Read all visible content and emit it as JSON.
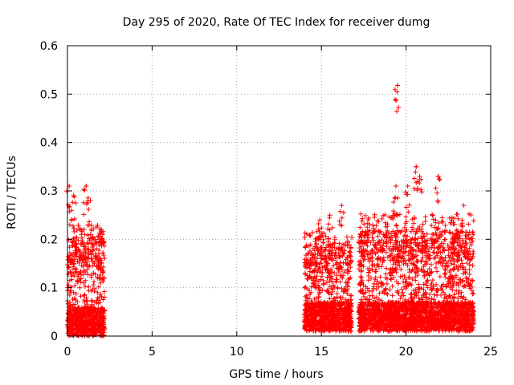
{
  "chart_data": {
    "type": "scatter",
    "title": "Day 295 of 2020, Rate Of TEC Index for receiver dumg",
    "xlabel": "GPS time / hours",
    "ylabel": "ROTI / TECUs",
    "xlim": [
      0,
      25
    ],
    "ylim": [
      0,
      0.6
    ],
    "x_ticks": [
      0,
      5,
      10,
      15,
      20,
      25
    ],
    "y_ticks": [
      0,
      0.1,
      0.2,
      0.3,
      0.4,
      0.5,
      0.6
    ],
    "grid": true,
    "marker": "+",
    "series_color": "#ff0000",
    "series": [
      {
        "segments": [
          {
            "start": 0.0,
            "end": 2.2,
            "base_min": 0.0,
            "base_max": 0.2,
            "peaks": [
              [
                0.1,
                0.31
              ],
              [
                1.1,
                0.31
              ],
              [
                1.35,
                0.28
              ],
              [
                0.35,
                0.29
              ],
              [
                2.0,
                0.22
              ]
            ]
          },
          {
            "start": 14.0,
            "end": 16.8,
            "base_min": 0.01,
            "base_max": 0.19,
            "peaks": [
              [
                16.2,
                0.27
              ],
              [
                15.5,
                0.25
              ],
              [
                14.9,
                0.24
              ]
            ]
          },
          {
            "start": 17.2,
            "end": 24.0,
            "base_min": 0.01,
            "base_max": 0.22,
            "peaks": [
              [
                19.5,
                0.518
              ],
              [
                20.6,
                0.35
              ],
              [
                20.8,
                0.33
              ],
              [
                21.9,
                0.33
              ],
              [
                20.1,
                0.31
              ],
              [
                19.4,
                0.31
              ],
              [
                23.4,
                0.27
              ]
            ]
          }
        ]
      }
    ],
    "notable_points": [
      {
        "x": 19.5,
        "y": 0.518
      },
      {
        "x": 20.6,
        "y": 0.35
      },
      {
        "x": 21.9,
        "y": 0.33
      },
      {
        "x": 0.1,
        "y": 0.31
      },
      {
        "x": 1.1,
        "y": 0.31
      }
    ]
  }
}
